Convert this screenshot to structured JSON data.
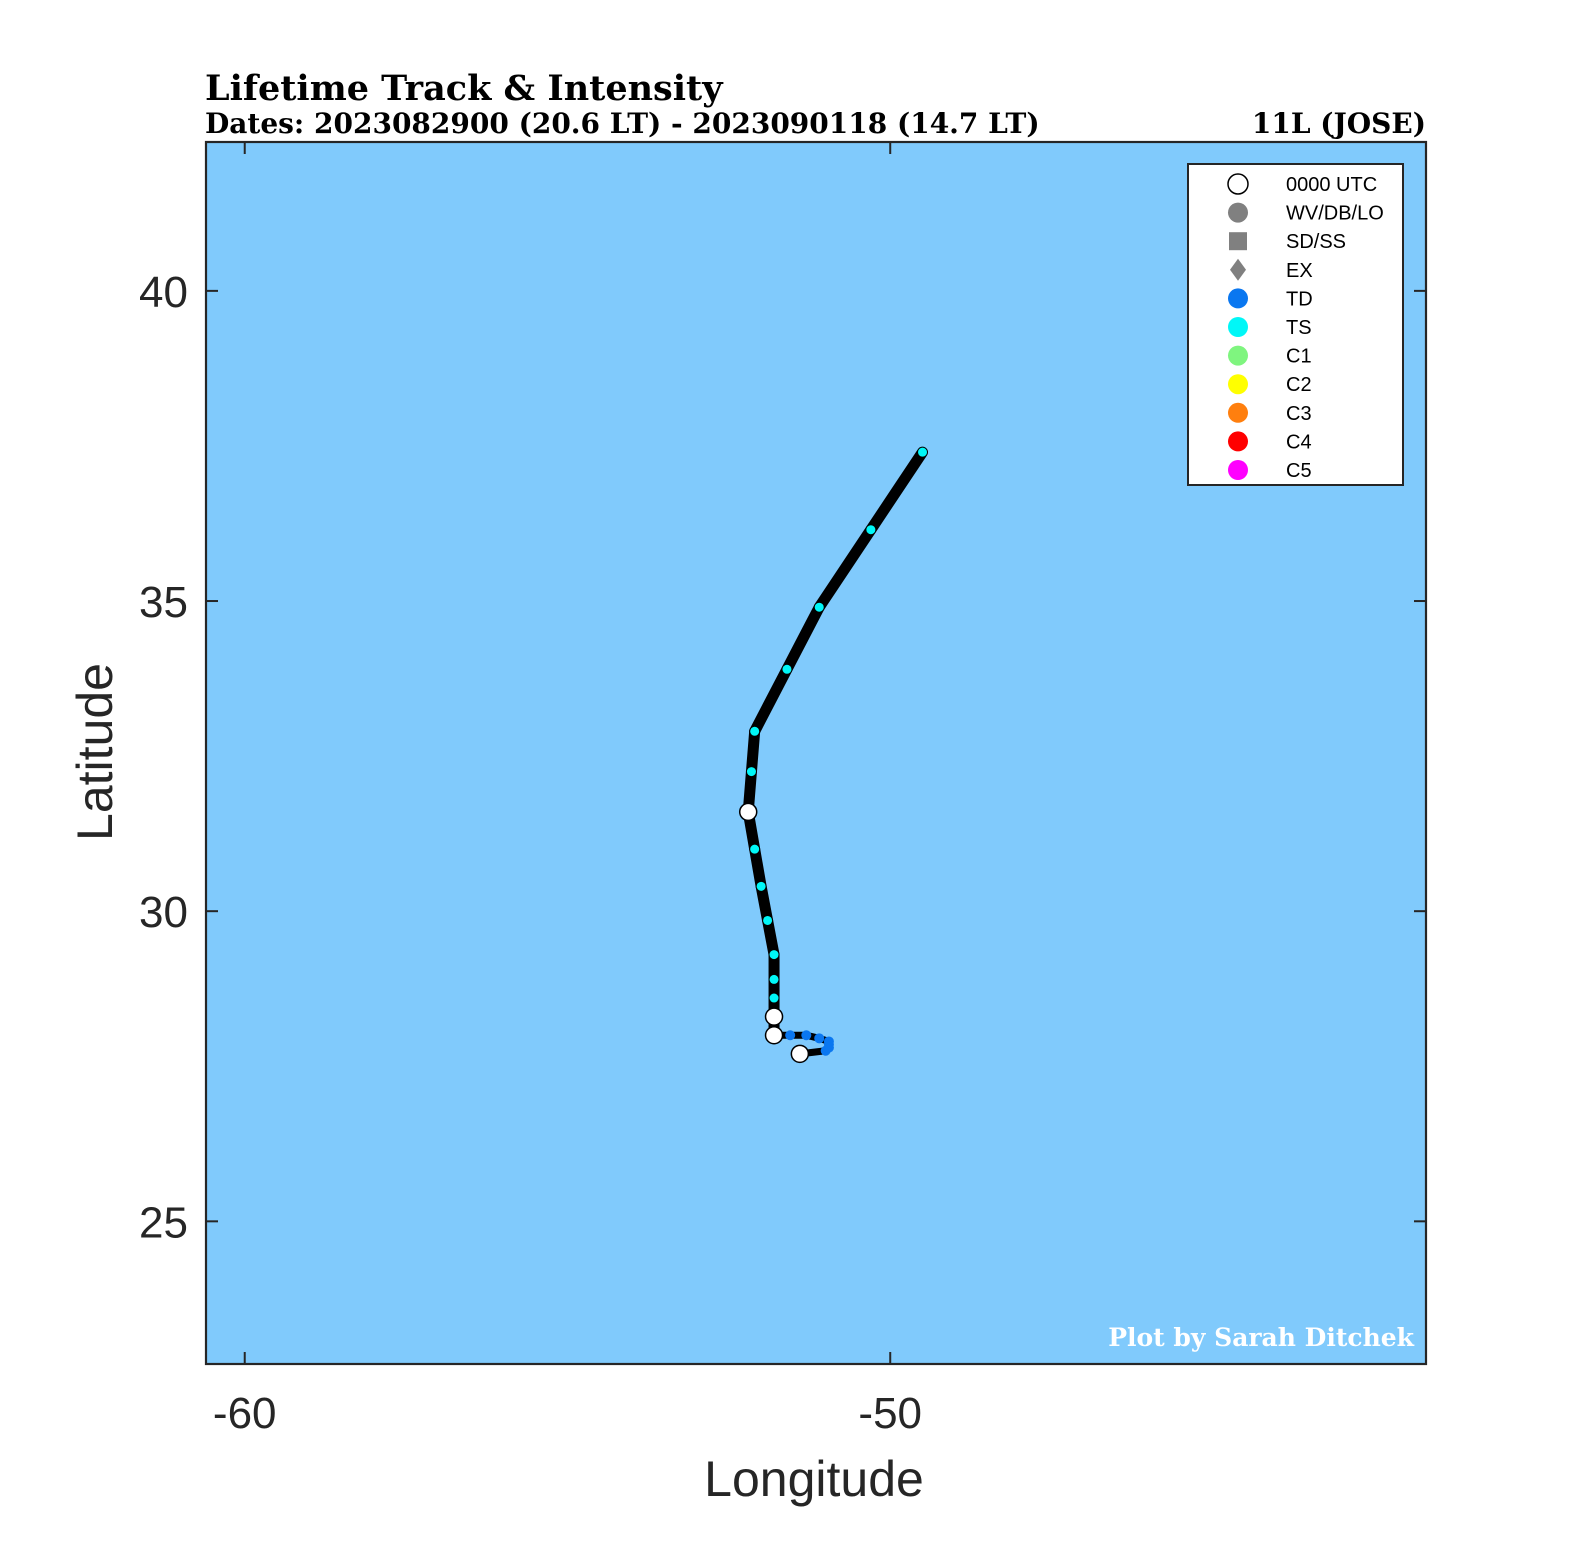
{
  "header": {
    "title": "Lifetime Track & Intensity",
    "dates": "Dates: 2023082900 (20.6 LT) - 2023090118 (14.7 LT)",
    "storm_id": "11L (JOSE)"
  },
  "credit": "Plot by Sarah Ditchek",
  "colors": {
    "ocean": "#80CAFC",
    "track": "#000000",
    "TD": "#0A77F0",
    "TS": "#00F7F7",
    "C1": "#7FF57F",
    "C2": "#FFFF00",
    "C3": "#FF7F0E",
    "C4": "#FF0000",
    "C5": "#FF00FF",
    "generic": "#808080",
    "credit_text": "#FFFFFF"
  },
  "legend": {
    "placement": "top-right",
    "items": [
      {
        "label": "0000 UTC",
        "symbol": "circle-open",
        "color": "#FFFFFF"
      },
      {
        "label": "WV/DB/LO",
        "symbol": "circle",
        "color": "#808080"
      },
      {
        "label": "SD/SS",
        "symbol": "square",
        "color": "#808080"
      },
      {
        "label": "EX",
        "symbol": "diamond",
        "color": "#808080"
      },
      {
        "label": "TD",
        "symbol": "circle",
        "color": "#0A77F0"
      },
      {
        "label": "TS",
        "symbol": "circle",
        "color": "#00F7F7"
      },
      {
        "label": "C1",
        "symbol": "circle",
        "color": "#7FF57F"
      },
      {
        "label": "C2",
        "symbol": "circle",
        "color": "#FFFF00"
      },
      {
        "label": "C3",
        "symbol": "circle",
        "color": "#FF7F0E"
      },
      {
        "label": "C4",
        "symbol": "circle",
        "color": "#FF0000"
      },
      {
        "label": "C5",
        "symbol": "circle",
        "color": "#FF00FF"
      }
    ]
  },
  "chart_data": {
    "type": "scatter",
    "title": "Lifetime Track & Intensity",
    "xlabel": "Longitude",
    "ylabel": "Latitude",
    "xlim": [
      -60.6,
      -41.7
    ],
    "ylim": [
      22.7,
      42.4
    ],
    "xticks": [
      -60,
      -50
    ],
    "yticks": [
      25,
      30,
      35,
      40
    ],
    "grid": false,
    "track": [
      {
        "lon": -51.4,
        "lat": 27.7,
        "cat": "TD",
        "utc0000": true
      },
      {
        "lon": -51.0,
        "lat": 27.75,
        "cat": "TD"
      },
      {
        "lon": -50.95,
        "lat": 27.8,
        "cat": "TD"
      },
      {
        "lon": -50.95,
        "lat": 27.85,
        "cat": "TD"
      },
      {
        "lon": -50.95,
        "lat": 27.9,
        "cat": "TD"
      },
      {
        "lon": -51.1,
        "lat": 27.95,
        "cat": "TD"
      },
      {
        "lon": -51.3,
        "lat": 28.0,
        "cat": "TD"
      },
      {
        "lon": -51.55,
        "lat": 28.0,
        "cat": "TD"
      },
      {
        "lon": -51.8,
        "lat": 28.0,
        "cat": "TD",
        "utc0000": true
      },
      {
        "lon": -51.8,
        "lat": 28.3,
        "cat": "TS",
        "utc0000": true
      },
      {
        "lon": -51.8,
        "lat": 28.6,
        "cat": "TS"
      },
      {
        "lon": -51.8,
        "lat": 28.9,
        "cat": "TS"
      },
      {
        "lon": -51.8,
        "lat": 29.3,
        "cat": "TS"
      },
      {
        "lon": -51.9,
        "lat": 29.85,
        "cat": "TS"
      },
      {
        "lon": -52.0,
        "lat": 30.4,
        "cat": "TS"
      },
      {
        "lon": -52.1,
        "lat": 31.0,
        "cat": "TS"
      },
      {
        "lon": -52.2,
        "lat": 31.6,
        "cat": "TS",
        "utc0000": true
      },
      {
        "lon": -52.15,
        "lat": 32.25,
        "cat": "TS"
      },
      {
        "lon": -52.1,
        "lat": 32.9,
        "cat": "TS"
      },
      {
        "lon": -51.6,
        "lat": 33.9,
        "cat": "TS"
      },
      {
        "lon": -51.1,
        "lat": 34.9,
        "cat": "TS"
      },
      {
        "lon": -50.3,
        "lat": 36.15,
        "cat": "TS"
      },
      {
        "lon": -49.5,
        "lat": 37.4,
        "cat": "TS"
      }
    ]
  }
}
